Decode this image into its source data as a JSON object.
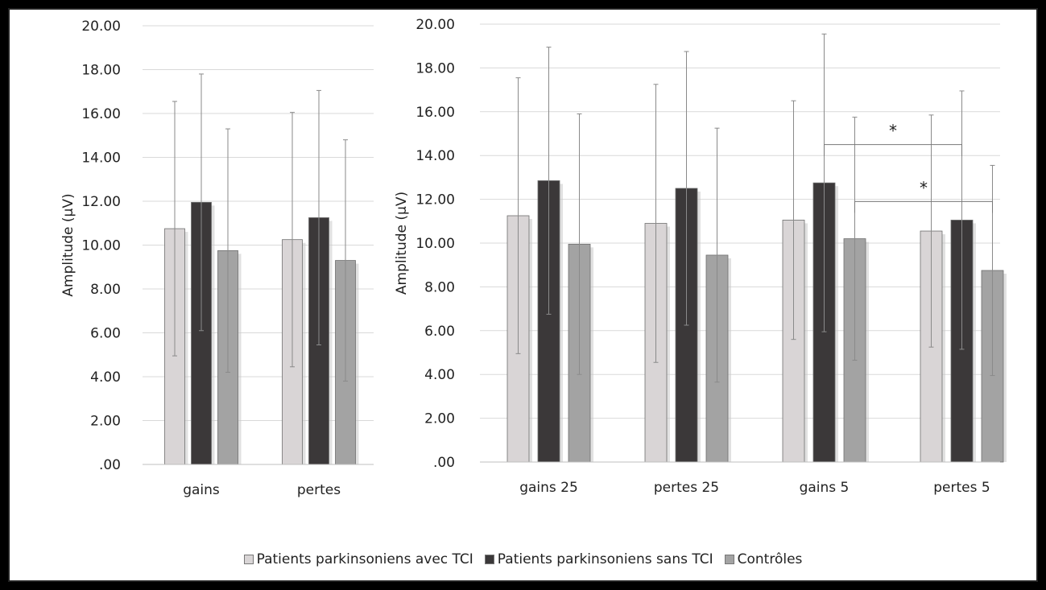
{
  "colors": {
    "series1": "#d9d5d6",
    "series2": "#3b3839",
    "series3": "#a3a3a3"
  },
  "chart_data": [
    {
      "type": "bar",
      "categories": [
        "gains",
        "pertes"
      ],
      "ylabel": "Amplitude (µV)",
      "ylim": [
        0,
        20
      ],
      "yticks": [
        ".00",
        "2.00",
        "4.00",
        "6.00",
        "8.00",
        "10.00",
        "12.00",
        "14.00",
        "16.00",
        "18.00",
        "20.00"
      ],
      "series": [
        {
          "name": "Patients parkinsoniens avec TCI",
          "values": [
            10.75,
            10.25
          ],
          "errors": [
            5.8,
            5.8
          ]
        },
        {
          "name": "Patients parkinsoniens sans TCI",
          "values": [
            11.95,
            11.25
          ],
          "errors": [
            5.85,
            5.8
          ]
        },
        {
          "name": "Contrôles",
          "values": [
            9.75,
            9.3
          ],
          "errors": [
            5.55,
            5.5
          ]
        }
      ]
    },
    {
      "type": "bar",
      "categories": [
        "gains 25",
        "pertes 25",
        "gains 5",
        "pertes 5"
      ],
      "ylabel": "Amplitude (µV)",
      "ylim": [
        0,
        20
      ],
      "yticks": [
        ".00",
        "2.00",
        "4.00",
        "6.00",
        "8.00",
        "10.00",
        "12.00",
        "14.00",
        "16.00",
        "18.00",
        "20.00"
      ],
      "series": [
        {
          "name": "Patients parkinsoniens avec TCI",
          "values": [
            11.25,
            10.9,
            11.05,
            10.55
          ],
          "errors": [
            6.3,
            6.35,
            5.45,
            5.3
          ]
        },
        {
          "name": "Patients parkinsoniens sans TCI",
          "values": [
            12.85,
            12.5,
            12.75,
            11.05
          ],
          "errors": [
            6.1,
            6.25,
            6.8,
            5.9
          ]
        },
        {
          "name": "Contrôles",
          "values": [
            9.95,
            9.45,
            10.2,
            8.75
          ],
          "errors": [
            5.95,
            5.8,
            5.55,
            4.8
          ]
        }
      ],
      "annotations": [
        {
          "text": "*",
          "from": {
            "category": "gains 5",
            "series": 1
          },
          "to": {
            "category": "pertes 5",
            "series": 1
          },
          "y": 14.5
        },
        {
          "text": "*",
          "from": {
            "category": "gains 5",
            "series": 2
          },
          "to": {
            "category": "pertes 5",
            "series": 2
          },
          "y": 11.9
        }
      ]
    }
  ],
  "legend": [
    {
      "label": "Patients parkinsoniens avec TCI"
    },
    {
      "label": "Patients parkinsoniens sans TCI"
    },
    {
      "label": "Contrôles"
    }
  ]
}
